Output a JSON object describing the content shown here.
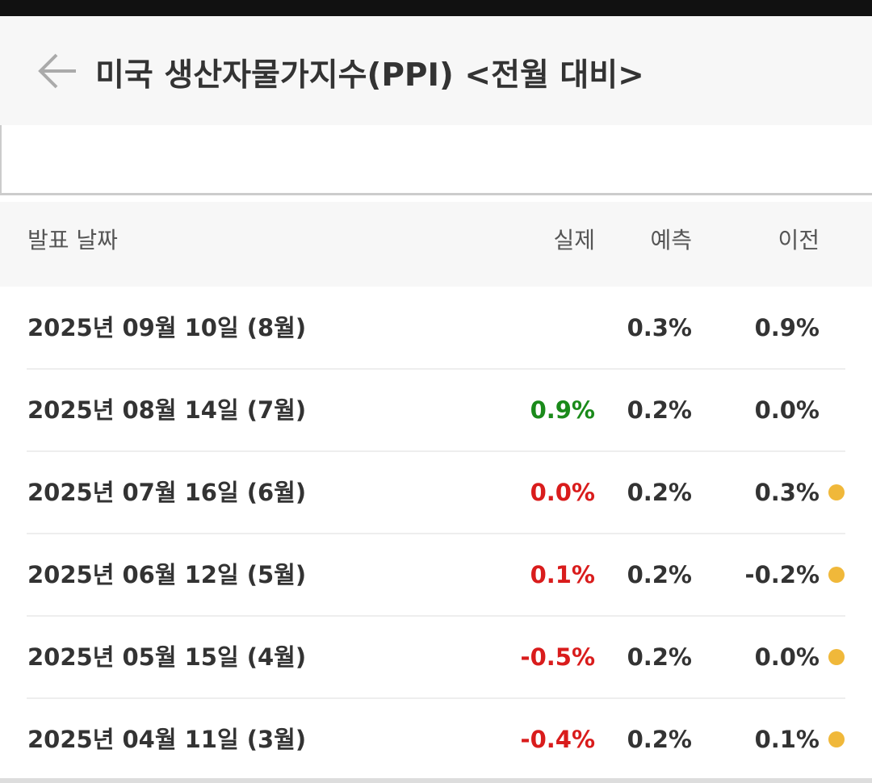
{
  "header": {
    "title": "미국 생산자물가지수(PPI) <전월 대비>"
  },
  "table": {
    "columns": [
      "발표 날짜",
      "실제",
      "예측",
      "이전"
    ],
    "rows": [
      {
        "date": "2025년 09월 10일 (8월)",
        "actual": null,
        "actual_color": null,
        "forecast": "0.3%",
        "previous": "0.9%",
        "revised": false
      },
      {
        "date": "2025년 08월 14일 (7월)",
        "actual": "0.9%",
        "actual_color": "#1a8a1a",
        "forecast": "0.2%",
        "previous": "0.0%",
        "revised": false
      },
      {
        "date": "2025년 07월 16일 (6월)",
        "actual": "0.0%",
        "actual_color": "#d91c1c",
        "forecast": "0.2%",
        "previous": "0.3%",
        "revised": true
      },
      {
        "date": "2025년 06월 12일 (5월)",
        "actual": "0.1%",
        "actual_color": "#d91c1c",
        "forecast": "0.2%",
        "previous": "-0.2%",
        "revised": true
      },
      {
        "date": "2025년 05월 15일 (4월)",
        "actual": "-0.5%",
        "actual_color": "#d91c1c",
        "forecast": "0.2%",
        "previous": "0.0%",
        "revised": true
      },
      {
        "date": "2025년 04월 11일 (3월)",
        "actual": "-0.4%",
        "actual_color": "#d91c1c",
        "forecast": "0.2%",
        "previous": "0.1%",
        "revised": true
      }
    ]
  }
}
